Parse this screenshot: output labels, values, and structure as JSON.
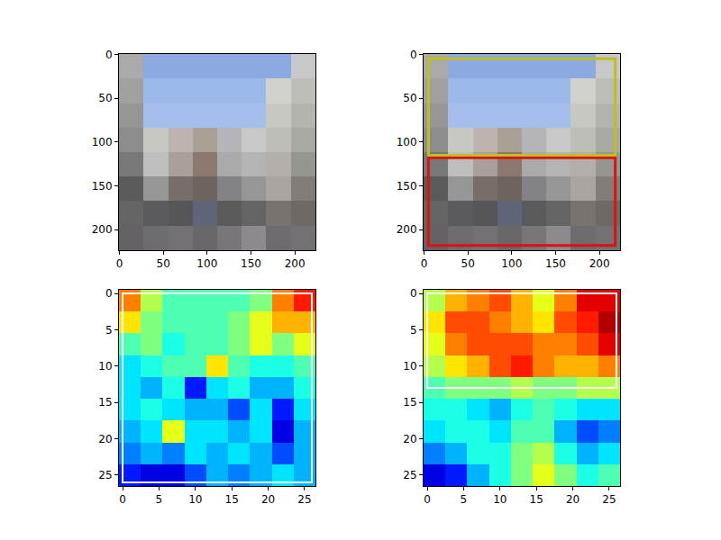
{
  "chart_data": [
    {
      "type": "image",
      "x": [
        13.5,
        41.5,
        69.5,
        97.5,
        125.5,
        153.5,
        181.5,
        209.5
      ],
      "y": [
        13.5,
        41.5,
        69.5,
        97.5,
        125.5,
        153.5,
        181.5,
        209.5
      ],
      "pixels": [
        [
          [
            170,
            170,
            170
          ],
          [
            140,
            170,
            225
          ],
          [
            140,
            170,
            225
          ],
          [
            140,
            170,
            225
          ],
          [
            140,
            170,
            225
          ],
          [
            140,
            170,
            225
          ],
          [
            140,
            170,
            225
          ],
          [
            200,
            200,
            200
          ]
        ],
        [
          [
            160,
            160,
            160
          ],
          [
            155,
            185,
            235
          ],
          [
            155,
            185,
            235
          ],
          [
            155,
            185,
            235
          ],
          [
            155,
            185,
            235
          ],
          [
            155,
            185,
            235
          ],
          [
            210,
            210,
            205
          ],
          [
            190,
            190,
            185
          ]
        ],
        [
          [
            150,
            150,
            150
          ],
          [
            165,
            190,
            235
          ],
          [
            165,
            190,
            235
          ],
          [
            165,
            190,
            235
          ],
          [
            165,
            190,
            235
          ],
          [
            165,
            190,
            235
          ],
          [
            200,
            200,
            195
          ],
          [
            180,
            180,
            175
          ]
        ],
        [
          [
            140,
            140,
            140
          ],
          [
            200,
            200,
            195
          ],
          [
            190,
            180,
            175
          ],
          [
            170,
            160,
            150
          ],
          [
            180,
            180,
            185
          ],
          [
            200,
            200,
            200
          ],
          [
            190,
            190,
            185
          ],
          [
            170,
            170,
            165
          ]
        ],
        [
          [
            120,
            120,
            120
          ],
          [
            190,
            190,
            190
          ],
          [
            170,
            160,
            155
          ],
          [
            140,
            120,
            110
          ],
          [
            170,
            170,
            170
          ],
          [
            180,
            180,
            180
          ],
          [
            180,
            175,
            170
          ],
          [
            150,
            150,
            145
          ]
        ],
        [
          [
            90,
            90,
            90
          ],
          [
            150,
            150,
            150
          ],
          [
            120,
            110,
            105
          ],
          [
            110,
            100,
            95
          ],
          [
            130,
            130,
            135
          ],
          [
            150,
            150,
            150
          ],
          [
            170,
            165,
            160
          ],
          [
            130,
            125,
            120
          ]
        ],
        [
          [
            100,
            100,
            100
          ],
          [
            90,
            90,
            95
          ],
          [
            85,
            85,
            90
          ],
          [
            95,
            100,
            120
          ],
          [
            90,
            90,
            90
          ],
          [
            100,
            100,
            100
          ],
          [
            120,
            115,
            110
          ],
          [
            110,
            105,
            100
          ]
        ],
        [
          [
            100,
            98,
            100
          ],
          [
            110,
            108,
            110
          ],
          [
            115,
            113,
            115
          ],
          [
            105,
            103,
            105
          ],
          [
            120,
            118,
            120
          ],
          [
            140,
            138,
            140
          ],
          [
            110,
            108,
            110
          ],
          [
            115,
            113,
            115
          ]
        ]
      ],
      "xlim": [
        -0.5,
        223.5
      ],
      "ylim": [
        223.5,
        -0.5
      ],
      "xticks": [
        0,
        50,
        100,
        150,
        200
      ],
      "yticks": [
        0,
        50,
        100,
        150,
        200
      ],
      "boxes": []
    },
    {
      "type": "image",
      "x": [
        13.5,
        41.5,
        69.5,
        97.5,
        125.5,
        153.5,
        181.5,
        209.5
      ],
      "y": [
        13.5,
        41.5,
        69.5,
        97.5,
        125.5,
        153.5,
        181.5,
        209.5
      ],
      "pixels": [
        [
          [
            170,
            170,
            170
          ],
          [
            140,
            170,
            225
          ],
          [
            140,
            170,
            225
          ],
          [
            140,
            170,
            225
          ],
          [
            140,
            170,
            225
          ],
          [
            140,
            170,
            225
          ],
          [
            140,
            170,
            225
          ],
          [
            200,
            200,
            200
          ]
        ],
        [
          [
            160,
            160,
            160
          ],
          [
            155,
            185,
            235
          ],
          [
            155,
            185,
            235
          ],
          [
            155,
            185,
            235
          ],
          [
            155,
            185,
            235
          ],
          [
            155,
            185,
            235
          ],
          [
            210,
            210,
            205
          ],
          [
            190,
            190,
            185
          ]
        ],
        [
          [
            150,
            150,
            150
          ],
          [
            165,
            190,
            235
          ],
          [
            165,
            190,
            235
          ],
          [
            165,
            190,
            235
          ],
          [
            165,
            190,
            235
          ],
          [
            165,
            190,
            235
          ],
          [
            200,
            200,
            195
          ],
          [
            180,
            180,
            175
          ]
        ],
        [
          [
            140,
            140,
            140
          ],
          [
            200,
            200,
            195
          ],
          [
            190,
            180,
            175
          ],
          [
            170,
            160,
            150
          ],
          [
            180,
            180,
            185
          ],
          [
            200,
            200,
            200
          ],
          [
            190,
            190,
            185
          ],
          [
            170,
            170,
            165
          ]
        ],
        [
          [
            120,
            120,
            120
          ],
          [
            190,
            190,
            190
          ],
          [
            170,
            160,
            155
          ],
          [
            140,
            120,
            110
          ],
          [
            170,
            170,
            170
          ],
          [
            180,
            180,
            180
          ],
          [
            180,
            175,
            170
          ],
          [
            150,
            150,
            145
          ]
        ],
        [
          [
            90,
            90,
            90
          ],
          [
            150,
            150,
            150
          ],
          [
            120,
            110,
            105
          ],
          [
            110,
            100,
            95
          ],
          [
            130,
            130,
            135
          ],
          [
            150,
            150,
            150
          ],
          [
            170,
            165,
            160
          ],
          [
            130,
            125,
            120
          ]
        ],
        [
          [
            100,
            100,
            100
          ],
          [
            90,
            90,
            95
          ],
          [
            85,
            85,
            90
          ],
          [
            95,
            100,
            120
          ],
          [
            90,
            90,
            90
          ],
          [
            100,
            100,
            100
          ],
          [
            120,
            115,
            110
          ],
          [
            110,
            105,
            100
          ]
        ],
        [
          [
            100,
            98,
            100
          ],
          [
            110,
            108,
            110
          ],
          [
            115,
            113,
            115
          ],
          [
            105,
            103,
            105
          ],
          [
            120,
            118,
            120
          ],
          [
            140,
            138,
            140
          ],
          [
            110,
            108,
            110
          ],
          [
            115,
            113,
            115
          ]
        ]
      ],
      "xlim": [
        -0.5,
        223.5
      ],
      "ylim": [
        223.5,
        -0.5
      ],
      "xticks": [
        0,
        50,
        100,
        150,
        200
      ],
      "yticks": [
        0,
        50,
        100,
        150,
        200
      ],
      "boxes": [
        {
          "x0": 5,
          "y0": 118,
          "x1": 218,
          "y1": 218,
          "color": "#dd1111"
        },
        {
          "x0": 5,
          "y0": 5,
          "x1": 218,
          "y1": 115,
          "color": "#bfbf22"
        }
      ]
    },
    {
      "type": "heatmap",
      "color": "jet",
      "x": [
        1,
        4,
        7,
        10,
        13,
        16,
        19,
        22,
        25
      ],
      "y": [
        1,
        4,
        7,
        10,
        13,
        16,
        19,
        22,
        25
      ],
      "cells": [
        [
          0.75,
          0.55,
          0.45,
          0.45,
          0.45,
          0.45,
          0.5,
          0.75,
          0.85
        ],
        [
          0.65,
          0.5,
          0.45,
          0.45,
          0.45,
          0.5,
          0.6,
          0.7,
          0.7
        ],
        [
          0.45,
          0.5,
          0.4,
          0.45,
          0.45,
          0.5,
          0.6,
          0.5,
          0.6
        ],
        [
          0.35,
          0.4,
          0.45,
          0.45,
          0.65,
          0.45,
          0.4,
          0.4,
          0.45
        ],
        [
          0.35,
          0.3,
          0.4,
          0.15,
          0.35,
          0.4,
          0.3,
          0.3,
          0.4
        ],
        [
          0.35,
          0.4,
          0.35,
          0.3,
          0.3,
          0.2,
          0.35,
          0.15,
          0.35
        ],
        [
          0.3,
          0.35,
          0.6,
          0.35,
          0.35,
          0.3,
          0.35,
          0.1,
          0.3
        ],
        [
          0.25,
          0.3,
          0.25,
          0.35,
          0.3,
          0.35,
          0.3,
          0.2,
          0.3
        ],
        [
          0.15,
          0.1,
          0.1,
          0.2,
          0.3,
          0.25,
          0.3,
          0.35,
          0.3
        ]
      ],
      "zlim": [
        0,
        1
      ],
      "xlim": [
        -0.5,
        26.5
      ],
      "ylim": [
        26.5,
        -0.5
      ],
      "xticks": [
        0,
        5,
        10,
        15,
        20,
        25
      ],
      "yticks": [
        0,
        5,
        10,
        15,
        20,
        25
      ],
      "boxes": [
        {
          "x0": 0,
          "y0": 0,
          "x1": 26,
          "y1": 26,
          "color": "#ffffff"
        }
      ]
    },
    {
      "type": "heatmap",
      "color": "jet",
      "x": [
        1,
        4,
        7,
        10,
        13,
        16,
        19,
        22,
        25
      ],
      "y": [
        1,
        4,
        7,
        10,
        13,
        16,
        19,
        22,
        25
      ],
      "cells": [
        [
          0.55,
          0.7,
          0.75,
          0.8,
          0.7,
          0.6,
          0.75,
          0.9,
          0.9
        ],
        [
          0.65,
          0.8,
          0.8,
          0.75,
          0.7,
          0.65,
          0.8,
          0.85,
          0.95
        ],
        [
          0.6,
          0.75,
          0.8,
          0.8,
          0.8,
          0.75,
          0.75,
          0.8,
          0.9
        ],
        [
          0.55,
          0.65,
          0.7,
          0.8,
          0.85,
          0.75,
          0.7,
          0.7,
          0.75
        ],
        [
          0.45,
          0.5,
          0.5,
          0.5,
          0.55,
          0.5,
          0.5,
          0.55,
          0.55
        ],
        [
          0.4,
          0.4,
          0.35,
          0.3,
          0.4,
          0.45,
          0.4,
          0.35,
          0.35
        ],
        [
          0.35,
          0.4,
          0.4,
          0.35,
          0.45,
          0.45,
          0.3,
          0.2,
          0.25
        ],
        [
          0.25,
          0.3,
          0.4,
          0.4,
          0.5,
          0.55,
          0.4,
          0.3,
          0.35
        ],
        [
          0.1,
          0.15,
          0.3,
          0.4,
          0.5,
          0.6,
          0.5,
          0.4,
          0.45
        ]
      ],
      "zlim": [
        0,
        1
      ],
      "xlim": [
        -0.5,
        26.5
      ],
      "ylim": [
        26.5,
        -0.5
      ],
      "xticks": [
        0,
        5,
        10,
        15,
        20,
        25
      ],
      "yticks": [
        0,
        5,
        10,
        15,
        20,
        25
      ],
      "boxes": [
        {
          "x0": 0,
          "y0": 0,
          "x1": 26,
          "y1": 13,
          "color": "#ffffff"
        }
      ]
    }
  ]
}
